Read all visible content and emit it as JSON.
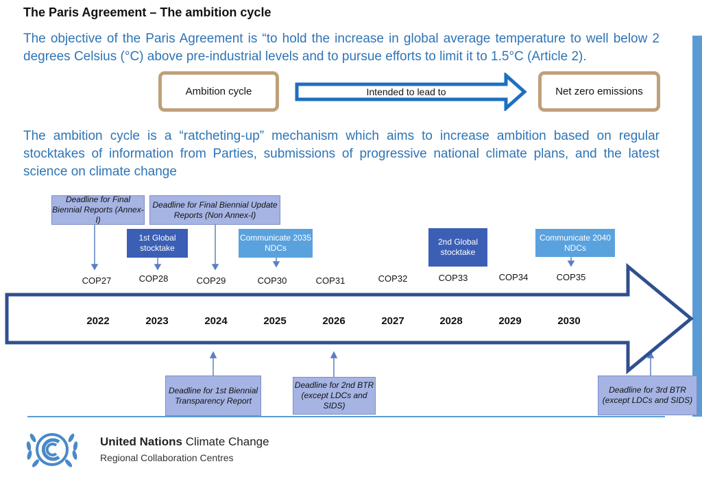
{
  "title": "The Paris Agreement – The ambition cycle",
  "objective_text": "The objective of the Paris Agreement is “to hold the increase in global average temperature to well below 2 degrees Celsius (°C) above pre-industrial levels and to pursue efforts to limit it to 1.5°C (Article 2).",
  "flow": {
    "start_label": "Ambition cycle",
    "arrow_label": "Intended to lead to",
    "end_label": "Net zero emissions"
  },
  "ambition_text": "The ambition cycle is a “ratcheting-up” mechanism which aims to increase ambition based on regular stocktakes of information from Parties, submissions of progressive national climate plans, and the latest science on climate change",
  "timeline": {
    "cops": [
      "COP27",
      "COP28",
      "COP29",
      "COP30",
      "COP31",
      "COP32",
      "COP33",
      "COP34",
      "COP35"
    ],
    "years": [
      "2022",
      "2023",
      "2024",
      "2025",
      "2026",
      "2027",
      "2028",
      "2029",
      "2030"
    ]
  },
  "events_above": {
    "final_br": "Deadline for Final Biennial Reports (Annex-I)",
    "final_bur": "Deadline for Final Biennial Update Reports (Non Annex-I)",
    "gst1": "1st Global stocktake",
    "ndc2035": "Communicate 2035 NDCs",
    "gst2": "2nd Global stocktake",
    "ndc2040": "Communicate 2040 NDCs"
  },
  "events_below": {
    "btr1": "Deadline for 1st Biennial Transparency Report",
    "btr2": "Deadline for 2nd BTR (except LDCs and SIDS)",
    "btr3": "Deadline for 3rd BTR (except LDCs and SIDS)"
  },
  "org": {
    "name_bold": "United Nations",
    "name_rest": "Climate Change",
    "subtitle": "Regional Collaboration Centres"
  },
  "colors": {
    "accent_blue": "#2e74b5",
    "arrow_outline": "#2f4f8f",
    "pill_border": "#bfa07a",
    "box_light": "#a6b4e4",
    "box_dark": "#3b5fb4",
    "box_mid": "#5aa2de"
  }
}
